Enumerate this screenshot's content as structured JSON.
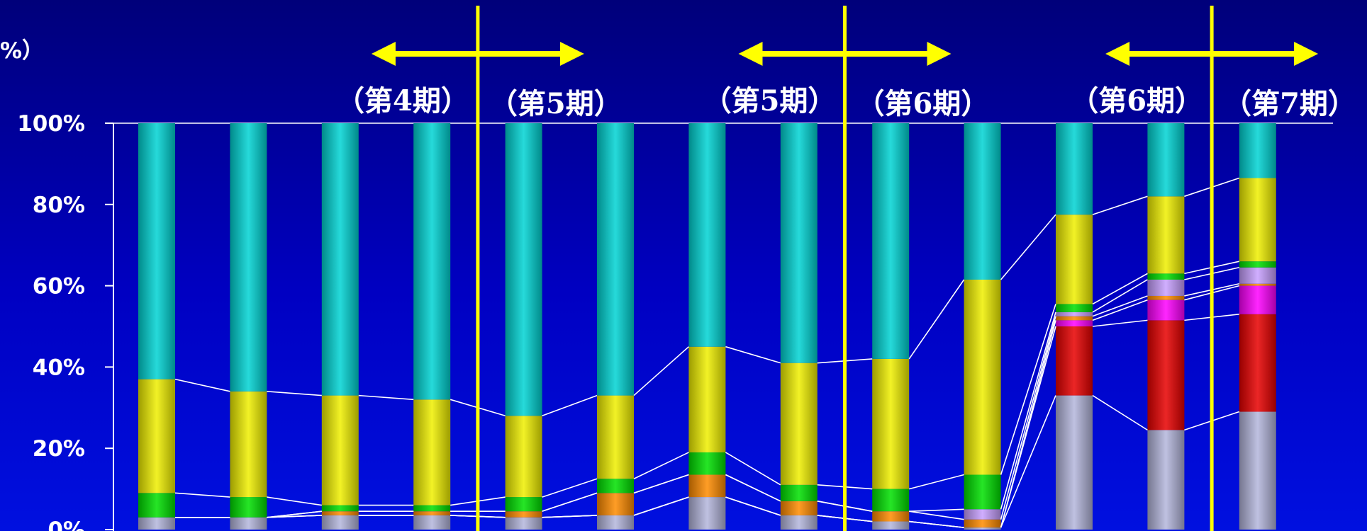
{
  "chart_data": {
    "type": "bar",
    "stacked": "percent",
    "unit_label": "%）",
    "ylim": [
      0,
      100
    ],
    "y_ticks": [
      "0%",
      "20%",
      "40%",
      "60%",
      "80%",
      "100%"
    ],
    "categories": [
      "",
      "",
      "",
      "",
      "",
      "",
      "",
      "",
      "",
      "",
      "",
      "",
      ""
    ],
    "series_colors": [
      "#b4b6dc",
      "#e80000",
      "#ff00ff",
      "#ff8c00",
      "#c8a0ff",
      "#00e000",
      "#f0f000",
      "#00d4d4"
    ],
    "series": [
      {
        "values": [
          3.0,
          3.0,
          3.5,
          3.5,
          3.0,
          3.5,
          8.0,
          3.5,
          2.0,
          0.5,
          33.0,
          24.5,
          29.0
        ]
      },
      {
        "values": [
          0.0,
          0.0,
          0.0,
          0.0,
          0.0,
          0.0,
          0.0,
          0.0,
          0.0,
          0.0,
          17.0,
          27.0,
          24.0
        ]
      },
      {
        "values": [
          0.0,
          0.0,
          0.0,
          0.0,
          0.0,
          0.0,
          0.0,
          0.0,
          0.0,
          0.0,
          1.5,
          5.0,
          7.0
        ]
      },
      {
        "values": [
          0.0,
          0.0,
          1.0,
          1.0,
          1.5,
          5.5,
          5.5,
          3.5,
          2.5,
          2.0,
          1.0,
          1.0,
          0.5
        ]
      },
      {
        "values": [
          0.0,
          0.0,
          0.0,
          0.0,
          0.0,
          0.0,
          0.0,
          0.0,
          0.0,
          2.5,
          1.0,
          4.0,
          4.0
        ]
      },
      {
        "values": [
          6.0,
          5.0,
          1.5,
          1.5,
          3.5,
          3.5,
          5.5,
          4.0,
          5.5,
          8.5,
          2.0,
          1.5,
          1.5
        ]
      },
      {
        "values": [
          28.0,
          26.0,
          27.0,
          26.0,
          20.0,
          20.5,
          26.0,
          30.0,
          32.0,
          48.0,
          22.0,
          19.0,
          20.5
        ]
      },
      {
        "values": [
          63.0,
          66.0,
          67.0,
          68.0,
          72.0,
          67.0,
          55.0,
          59.0,
          58.0,
          38.5,
          22.5,
          18.0,
          13.5
        ]
      }
    ],
    "period_markers": [
      {
        "left_label": "（第4期）",
        "right_label": "（第5期）",
        "between": [
          3,
          4
        ]
      },
      {
        "left_label": "（第5期）",
        "right_label": "（第6期）",
        "between": [
          7,
          8
        ]
      },
      {
        "left_label": "（第6期）",
        "right_label": "（第7期）",
        "between": [
          11,
          12
        ]
      }
    ],
    "colors": {
      "axis": "#ffffff",
      "marker": "#ffff00",
      "text": "#ffffff"
    }
  }
}
